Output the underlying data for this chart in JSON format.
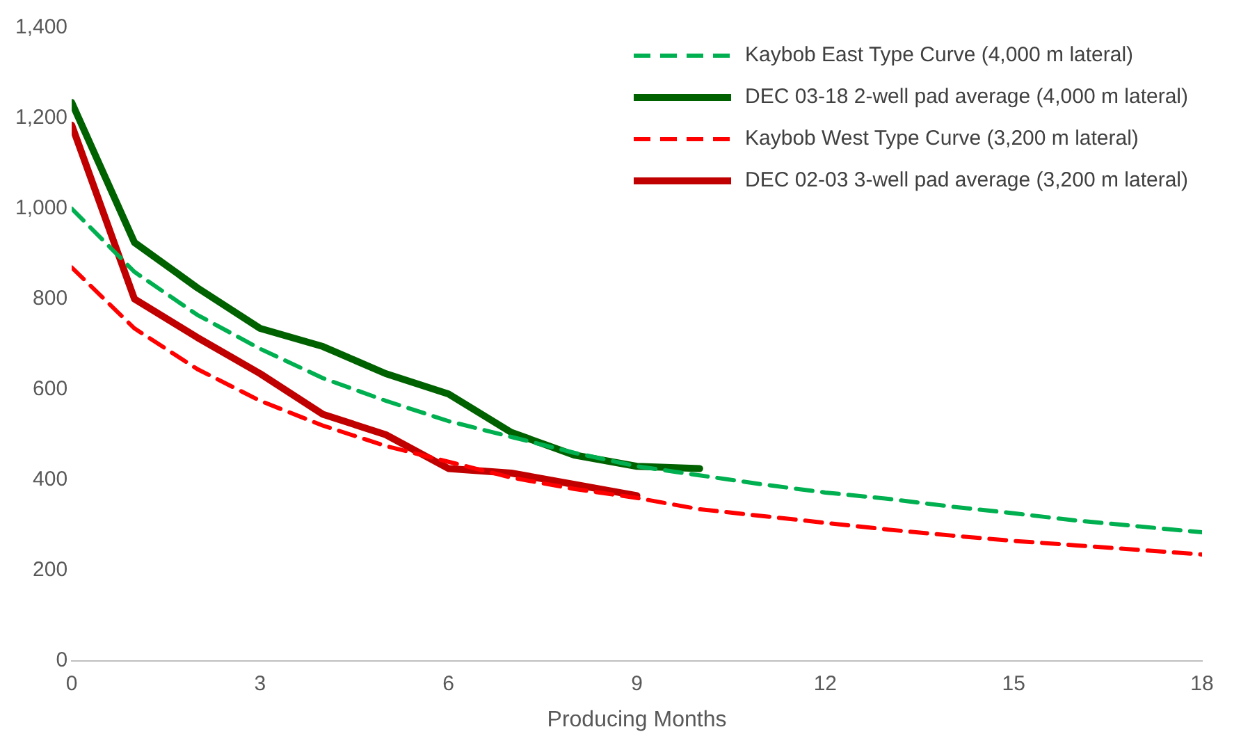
{
  "chart_data": {
    "type": "line",
    "xlabel": "Producing Months",
    "xlim": [
      0,
      18
    ],
    "xticks": [
      0,
      3,
      6,
      9,
      12,
      15,
      18
    ],
    "ylim": [
      0,
      1400
    ],
    "yticks": [
      {
        "value": 0,
        "label": "0"
      },
      {
        "value": 200,
        "label": "200"
      },
      {
        "value": 400,
        "label": "400"
      },
      {
        "value": 600,
        "label": "600"
      },
      {
        "value": 800,
        "label": "800"
      },
      {
        "value": 1000,
        "label": "1,000"
      },
      {
        "value": 1200,
        "label": "1,200"
      },
      {
        "value": 1400,
        "label": "1,400"
      }
    ],
    "grid": false,
    "legend": "top right",
    "marker": "none",
    "series": [
      {
        "name": "Kaybob East Type Curve (4,000 m lateral)",
        "color": "#00b050",
        "line_style": "dashed",
        "x": [
          0,
          1,
          2,
          3,
          4,
          5,
          6,
          7,
          8,
          9,
          10,
          11,
          12,
          13,
          14,
          15,
          16,
          17,
          18
        ],
        "values": [
          1000,
          860,
          765,
          690,
          625,
          575,
          530,
          495,
          460,
          430,
          410,
          390,
          372,
          358,
          341,
          326,
          310,
          297,
          284
        ]
      },
      {
        "name": "DEC 03-18 2-well pad average (4,000 m lateral)",
        "color": "#006100",
        "line_style": "solid",
        "x": [
          0,
          1,
          2,
          3,
          4,
          5,
          6,
          7,
          8,
          9,
          10
        ],
        "values": [
          1235,
          925,
          825,
          735,
          695,
          635,
          590,
          505,
          455,
          430,
          425
        ]
      },
      {
        "name": "Kaybob West Type Curve (3,200 m lateral)",
        "color": "#ff0000",
        "line_style": "dashed",
        "x": [
          0,
          1,
          2,
          3,
          4,
          5,
          6,
          7,
          8,
          9,
          10,
          11,
          12,
          13,
          14,
          15,
          16,
          17,
          18
        ],
        "values": [
          870,
          735,
          645,
          575,
          520,
          475,
          440,
          405,
          380,
          360,
          335,
          320,
          305,
          290,
          277,
          265,
          255,
          245,
          235
        ]
      },
      {
        "name": "DEC 02-03 3-well pad average (3,200 m lateral)",
        "color": "#c00000",
        "line_style": "solid",
        "x": [
          0,
          1,
          2,
          3,
          4,
          5,
          6,
          7,
          8,
          9
        ],
        "values": [
          1185,
          800,
          715,
          635,
          545,
          500,
          425,
          415,
          390,
          365
        ]
      }
    ]
  }
}
